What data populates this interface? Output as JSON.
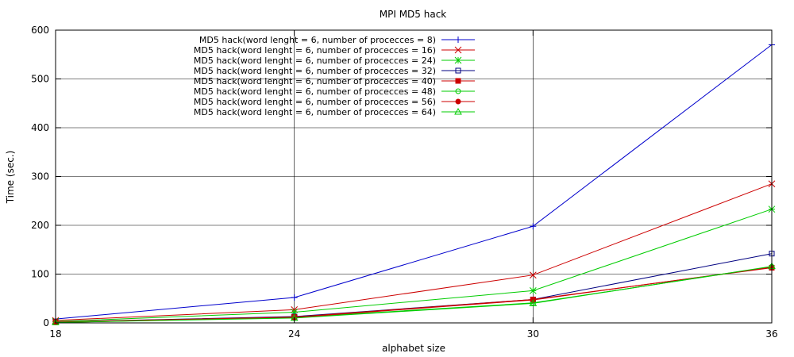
{
  "chart_data": {
    "type": "line",
    "title": "MPI MD5 hack",
    "xlabel": "alphabet size",
    "ylabel": "Time (sec.)",
    "x": [
      18,
      24,
      30,
      36
    ],
    "xticks": [
      "18",
      "24",
      "30",
      "36"
    ],
    "xlim": [
      18,
      36
    ],
    "ylim": [
      0,
      600
    ],
    "yticks": [
      "0",
      "100",
      "200",
      "300",
      "400",
      "500",
      "600"
    ],
    "grid": true,
    "legend_position": "top-left",
    "series": [
      {
        "name": "MD5 hack(word lenght = 6, number of procecces =   8)",
        "color": "#0000cc",
        "marker": "plus",
        "values": [
          8,
          52,
          198,
          570
        ]
      },
      {
        "name": "MD5 hack(word lenght = 6, number of procecces = 16)",
        "color": "#cc0000",
        "marker": "x",
        "values": [
          5,
          27,
          98,
          285
        ]
      },
      {
        "name": "MD5 hack(word lenght = 6, number of procecces = 24)",
        "color": "#00cc00",
        "marker": "star",
        "values": [
          3,
          22,
          66,
          233
        ]
      },
      {
        "name": "MD5 hack(word lenght = 6, number of procecces = 32)",
        "color": "#000080",
        "marker": "square-open",
        "values": [
          2,
          13,
          48,
          142
        ]
      },
      {
        "name": "MD5 hack(word lenght = 6, number of procecces = 40)",
        "color": "#cc0000",
        "marker": "square-filled",
        "values": [
          2,
          12,
          48,
          113
        ]
      },
      {
        "name": "MD5 hack(word lenght = 6, number of procecces = 48)",
        "color": "#00cc00",
        "marker": "circle-open",
        "values": [
          1,
          11,
          41,
          115
        ]
      },
      {
        "name": "MD5 hack(word lenght = 6, number of procecces = 56)",
        "color": "#cc0000",
        "marker": "circle-filled",
        "values": [
          1,
          11,
          47,
          114
        ]
      },
      {
        "name": "MD5 hack(word lenght = 6, number of procecces = 64)",
        "color": "#00cc00",
        "marker": "triangle-open",
        "values": [
          1,
          10,
          40,
          116
        ]
      }
    ]
  }
}
